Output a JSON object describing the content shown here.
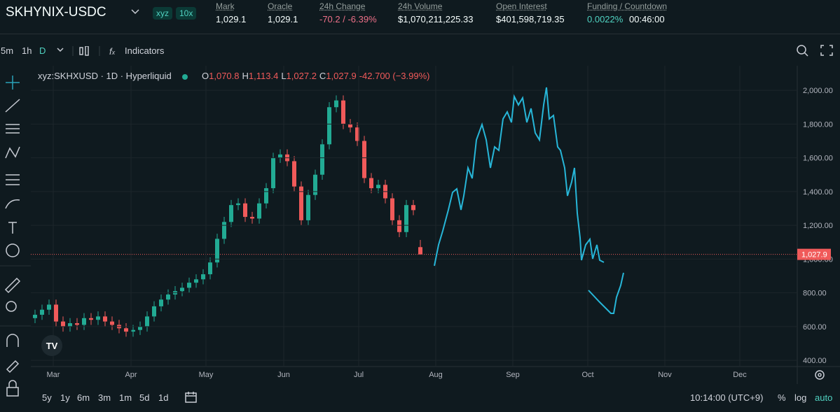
{
  "header": {
    "pair": "SKHYNIX-USDC",
    "tags": [
      "xyz",
      "10x"
    ],
    "stats": [
      {
        "label": "Mark",
        "value": "1,029.1"
      },
      {
        "label": "Oracle",
        "value": "1,029.1"
      },
      {
        "label": "24h Change",
        "value": "-70.2 / -6.39%"
      },
      {
        "label": "24h Volume",
        "value": "$1,070,211,225.33"
      },
      {
        "label": "Open Interest",
        "value": "$401,598,719.35"
      },
      {
        "label": "Funding / Countdown",
        "value": "0.0022%",
        "value2": "00:46:00"
      }
    ]
  },
  "toolbar": {
    "intervals": [
      "5m",
      "1h",
      "D"
    ],
    "indicators": "Indicators"
  },
  "legend": {
    "symbol": "xyz:SKHXUSD · 1D · Hyperliquid",
    "ohlc": [
      {
        "key": "O",
        "value": "1,070.8"
      },
      {
        "key": "H",
        "value": "1,113.4"
      },
      {
        "key": "L",
        "value": "1,027.2"
      },
      {
        "key": "C",
        "value": "1,027.9"
      }
    ],
    "change": "-42.700 (−3.99%)"
  },
  "chart_data": {
    "type": "candlestick",
    "up_color": "#22ab94",
    "down_color": "#f05a5a",
    "open": [
      650,
      670,
      700,
      730,
      630,
      600,
      620,
      610,
      650,
      640,
      660,
      630,
      610,
      590,
      570,
      580,
      600,
      660,
      720,
      760,
      790,
      810,
      830,
      860,
      880,
      910,
      980,
      1120,
      1220,
      1320,
      1330,
      1250,
      1240,
      1330,
      1420,
      1600,
      1620,
      1580,
      1430,
      1230,
      1380,
      1500,
      1680,
      1900,
      1940,
      1800,
      1780,
      1700,
      1480,
      1420,
      1440,
      1360,
      1230,
      1160,
      1320,
      1070.8
    ],
    "high": [
      700,
      730,
      760,
      760,
      660,
      650,
      650,
      680,
      680,
      690,
      690,
      660,
      640,
      620,
      610,
      630,
      690,
      750,
      790,
      820,
      840,
      860,
      890,
      910,
      940,
      1010,
      1150,
      1250,
      1350,
      1360,
      1360,
      1280,
      1360,
      1450,
      1630,
      1650,
      1650,
      1610,
      1460,
      1410,
      1530,
      1710,
      1930,
      1970,
      1970,
      1830,
      1810,
      1730,
      1510,
      1470,
      1470,
      1390,
      1260,
      1350,
      1350,
      1113.4
    ],
    "low": [
      620,
      640,
      670,
      600,
      570,
      570,
      580,
      580,
      610,
      610,
      600,
      580,
      560,
      540,
      540,
      550,
      570,
      630,
      690,
      730,
      760,
      780,
      800,
      830,
      850,
      880,
      950,
      1090,
      1190,
      1290,
      1220,
      1210,
      1210,
      1300,
      1390,
      1570,
      1550,
      1400,
      1200,
      1200,
      1350,
      1470,
      1650,
      1870,
      1770,
      1750,
      1670,
      1450,
      1390,
      1390,
      1330,
      1200,
      1130,
      1130,
      1260,
      1027.2
    ],
    "close": [
      670,
      700,
      730,
      630,
      600,
      620,
      610,
      650,
      640,
      660,
      630,
      610,
      590,
      570,
      580,
      600,
      660,
      720,
      760,
      790,
      810,
      830,
      860,
      880,
      910,
      980,
      1120,
      1220,
      1320,
      1330,
      1250,
      1240,
      1330,
      1420,
      1600,
      1620,
      1580,
      1430,
      1230,
      1380,
      1500,
      1680,
      1900,
      1940,
      1800,
      1780,
      1700,
      1480,
      1420,
      1440,
      1360,
      1230,
      1160,
      1320,
      1290,
      1027.9
    ],
    "last_price": {
      "value": 1027.9,
      "label": "1,027.9"
    },
    "ylim": [
      330,
      2100
    ],
    "yticks": [
      {
        "value": 400,
        "label": "400.00"
      },
      {
        "value": 600,
        "label": "600.00"
      },
      {
        "value": 800,
        "label": "800.00"
      },
      {
        "value": 1000,
        "label": "1,000.00"
      },
      {
        "value": 1200,
        "label": "1,200.00"
      },
      {
        "value": 1400,
        "label": "1,400.00"
      },
      {
        "value": 1600,
        "label": "1,600.00"
      },
      {
        "value": 1800,
        "label": "1,800.00"
      },
      {
        "value": 2000,
        "label": "2,000.00"
      }
    ],
    "months": [
      "Mar",
      "Apr",
      "May",
      "Jun",
      "Jul",
      "Aug",
      "Sep",
      "Oct",
      "Nov",
      "Dec"
    ]
  },
  "footer": {
    "ranges": [
      "5y",
      "1y",
      "6m",
      "3m",
      "1m",
      "5d",
      "1d"
    ],
    "time": "10:14:00 (UTC+9)",
    "options": [
      "%",
      "log",
      "auto"
    ]
  }
}
